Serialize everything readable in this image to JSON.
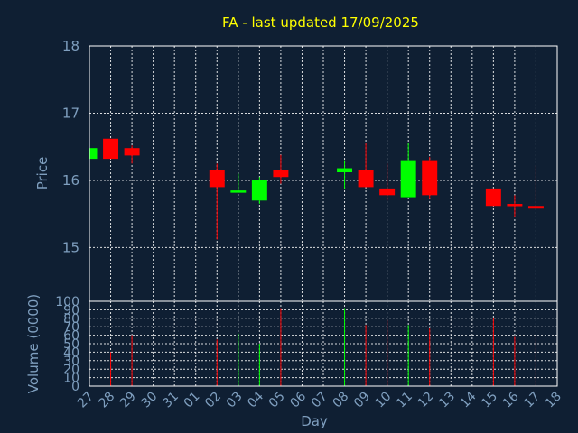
{
  "chart_data": {
    "type": "candlestick",
    "title": "FA - last updated 17/09/2025",
    "price_panel": {
      "ylabel": "Price",
      "ylim": [
        14.2,
        18
      ],
      "yticks": [
        15,
        16,
        17,
        18
      ]
    },
    "volume_panel": {
      "ylabel": "Volume (0000)",
      "ylim": [
        0,
        100
      ],
      "yticks": [
        0,
        10,
        20,
        30,
        40,
        50,
        60,
        70,
        80,
        90,
        100
      ]
    },
    "xlabel": "Day",
    "x_ticks": [
      "27",
      "28",
      "29",
      "30",
      "31",
      "01",
      "02",
      "03",
      "04",
      "05",
      "06",
      "07",
      "08",
      "09",
      "10",
      "11",
      "12",
      "13",
      "14",
      "15",
      "16",
      "17",
      "18"
    ],
    "up_color": "#00ff00",
    "down_color": "#ff0000",
    "candles": [
      {
        "day": "27",
        "open": 16.32,
        "close": 16.48,
        "high": 16.48,
        "low": 16.32,
        "volume": 0
      },
      {
        "day": "28",
        "open": 16.62,
        "close": 16.32,
        "high": 16.62,
        "low": 16.32,
        "volume": 40
      },
      {
        "day": "29",
        "open": 16.48,
        "close": 16.37,
        "high": 16.52,
        "low": 16.25,
        "volume": 60
      },
      {
        "day": "02",
        "open": 16.15,
        "close": 15.9,
        "high": 16.25,
        "low": 15.12,
        "volume": 55
      },
      {
        "day": "03",
        "open": 15.82,
        "close": 15.85,
        "high": 16.1,
        "low": 15.82,
        "volume": 62
      },
      {
        "day": "04",
        "open": 15.7,
        "close": 16.0,
        "high": 16.05,
        "low": 15.65,
        "volume": 50
      },
      {
        "day": "05",
        "open": 16.15,
        "close": 16.05,
        "high": 16.38,
        "low": 15.95,
        "volume": 92
      },
      {
        "day": "08",
        "open": 16.12,
        "close": 16.18,
        "high": 16.3,
        "low": 15.88,
        "volume": 92
      },
      {
        "day": "09",
        "open": 16.15,
        "close": 15.9,
        "high": 16.55,
        "low": 15.9,
        "volume": 72
      },
      {
        "day": "10",
        "open": 15.88,
        "close": 15.78,
        "high": 16.25,
        "low": 15.7,
        "volume": 78
      },
      {
        "day": "11",
        "open": 15.75,
        "close": 16.3,
        "high": 16.55,
        "low": 15.75,
        "volume": 72
      },
      {
        "day": "12",
        "open": 16.3,
        "close": 15.78,
        "high": 16.35,
        "low": 15.72,
        "volume": 68
      },
      {
        "day": "15",
        "open": 15.88,
        "close": 15.62,
        "high": 15.88,
        "low": 15.62,
        "volume": 80
      },
      {
        "day": "16",
        "open": 15.65,
        "close": 15.62,
        "high": 15.78,
        "low": 15.45,
        "volume": 58
      },
      {
        "day": "17",
        "open": 15.62,
        "close": 15.58,
        "high": 16.22,
        "low": 15.58,
        "volume": 60
      }
    ]
  }
}
